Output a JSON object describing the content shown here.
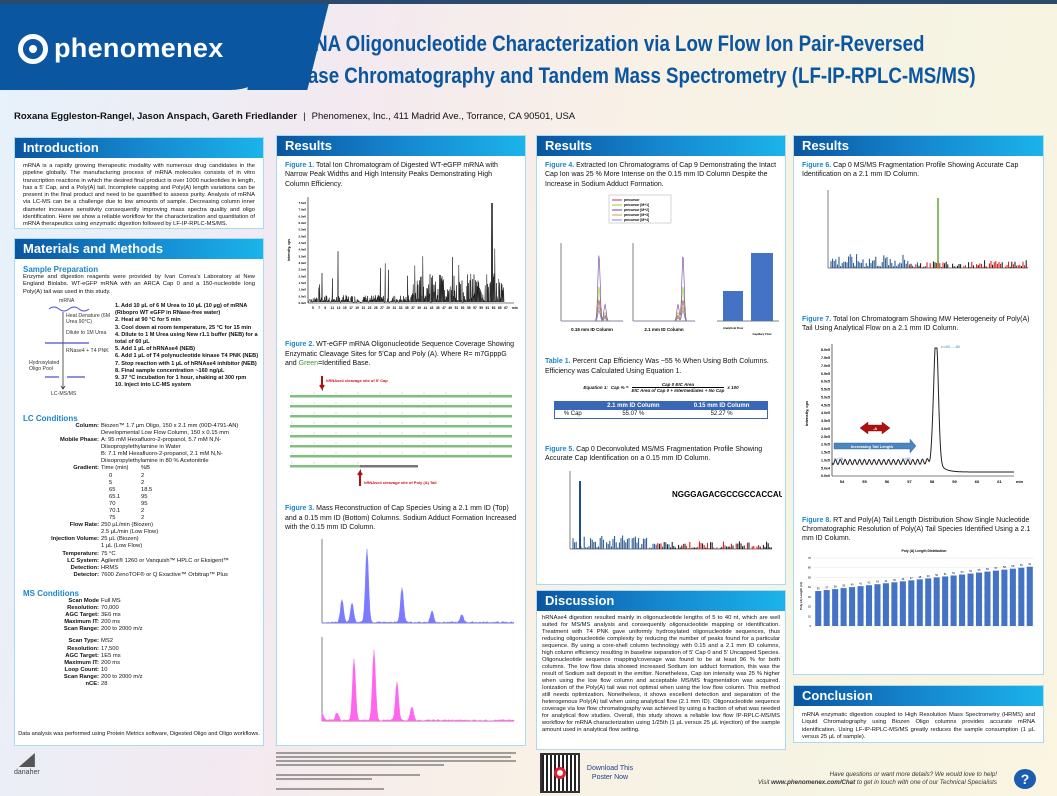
{
  "header": {
    "logo": "phenomenex",
    "title_line1": "mRNA Oligonucleotide Characterization via Low Flow Ion Pair-Reversed",
    "title_line2": "Phase Chromatography and Tandem Mass Spectrometry (LF-IP-RPLC-MS/MS)",
    "authors": "Roxana Eggleston-Rangel, Jason Anspach, Gareth Friedlander",
    "separator": "|",
    "affiliation": "Phenomenex, Inc., 411 Madrid Ave., Torrance, CA 90501, USA"
  },
  "intro": {
    "heading": "Introduction",
    "text": "mRNA is a rapidly growing therapeutic modality with numerous drug candidates in the pipeline globally. The manufacturing process of mRNA molecules consists of in vitro transcription reactions in which the desired final product is over 1000 nucleotides in length, has a 5' Cap, and a Poly(A) tail. Incomplete capping and Poly(A) length variations can be present in the final product and need to be quantified to assess purity. Analysis of mRNA via LC-MS can be a challenge due to low amounts of sample. Decreasing column inner diameter increases sensitivity consequently improving mass spectra quality and oligo identification. Here we show a reliable workflow for the characterization and quantitation of mRNA therapeutics using enzymatic digestion followed by LF-IP-RPLC-MS/MS."
  },
  "methods": {
    "heading": "Materials and Methods",
    "sample_prep_heading": "Sample Preparation",
    "sample_prep_text": "Enzyme and digestion reagents were provided by Ivan Correa's Laboratory at New England Biolabs. WT-eGFP mRNA with an ARCA Cap 0 and a 150-nucleotide long Poly(A) tail was used in this study.",
    "diagram": [
      "mRNA",
      "Heat Denature (6M Urea 90°C)",
      "Dilute to 1M Urea",
      "RNase4 + T4 PNK",
      "Hydroxylated Oligo Pool",
      "LC-MS/MS"
    ],
    "steps": [
      "1.  Add 10 µL of 6 M Urea to 10 µL (10 µg) of mRNA (Ribopro WT eGFP in RNase-free water)",
      "2.  Heat at 90 °C for 5 min",
      "3.  Cool down at room temperature, 25 °C for 15 min",
      "4.  Dilute to 1 M Urea using New r1.1 buffer (NEB) for a total of 60 µL",
      "5.  Add 1 µL of hRNAse4 (NEB)",
      "6.  Add 1 µL of T4 polynucleotide kinase T4 PNK (NEB)",
      "7.  Stop reaction with 1 µL of hRNAse4 inhibitor (NEB)",
      "8.  Final sample concentration ~160 ng/µL",
      "9.  37 °C incubation for 1 hour, shaking at 300 rpm",
      "10. Inject into LC-MS system"
    ],
    "lc_heading": "LC Conditions",
    "lc": [
      [
        "Column:",
        "Biozen™ 1.7 µm Oligo, 150 x 2.1 mm (00D-4791-AN)"
      ],
      [
        "",
        "Developmental Low Flow Column, 150 x 0.15 mm"
      ],
      [
        "Mobile Phase:",
        "A: 95 mM Hexafluoro-2-propanol, 5.7 mM N,N-Diisopropylethylamine in Water"
      ],
      [
        "",
        "B: 7.1 mM Hexafluoro-2-propanol, 2.1 mM N,N-Diisopropylethylamine in 80 % Acetonitrile"
      ]
    ],
    "gradient_label": "Gradient:",
    "gradient_head": [
      "Time (min)",
      "%B"
    ],
    "gradient": [
      [
        "0",
        "2"
      ],
      [
        "5",
        "2"
      ],
      [
        "65",
        "18.5"
      ],
      [
        "65.1",
        "95"
      ],
      [
        "70",
        "95"
      ],
      [
        "70.1",
        "2"
      ],
      [
        "75",
        "2"
      ]
    ],
    "lc2": [
      [
        "Flow Rate:",
        "250 µL/min (Biozen)"
      ],
      [
        "",
        "2.5 µL/min (Low Flow)"
      ],
      [
        "Injection Volume:",
        "25 µL (Biozen)"
      ],
      [
        "",
        "1 µL (Low Flow)"
      ],
      [
        "Temperature:",
        "75 °C"
      ],
      [
        "LC System:",
        "Agilent® 1260 or Vanquish™ HPLC or Eksigent™"
      ],
      [
        "Detection:",
        "HRMS"
      ],
      [
        "Detector:",
        "7600 ZenoTOF® or Q Exactive™ Orbitrap™ Plus"
      ]
    ],
    "ms_heading": "MS Conditions",
    "ms1": [
      [
        "Scan Mode",
        "Full MS"
      ],
      [
        "Resolution:",
        "70,000"
      ],
      [
        "AGC Target:",
        "3E6 ms"
      ],
      [
        "Maximum IT:",
        "200 ms"
      ],
      [
        "Scan Range:",
        "200 to 2000 m/z"
      ]
    ],
    "ms2": [
      [
        "Scan Type:",
        "MS2"
      ],
      [
        "Resolution:",
        "17,500"
      ],
      [
        "AGC Target:",
        "1E5 ms"
      ],
      [
        "Maximum IT:",
        "200 ms"
      ],
      [
        "Loop Count:",
        "10"
      ],
      [
        "Scan Range:",
        "200 to 2000 m/z"
      ],
      [
        "nCE:",
        "28"
      ]
    ],
    "data_note": "Data analysis was performed using Protein Metrics software, Digested Oligo and Oligo workflows."
  },
  "results1": {
    "heading": "Results",
    "fig1_label": "Figure 1.",
    "fig1_caption": "Total Ion Chromatogram of Digested WT-eGFP mRNA with Narrow Peak Widths and High Intensity Peaks Demonstrating High Column Efficiency.",
    "fig1_yticks": [
      "0.0e0",
      "5.0e5",
      "1.0e6",
      "1.5e6",
      "2.0e6",
      "2.5e6",
      "3.0e6",
      "3.5e6",
      "4.0e6",
      "4.5e6",
      "5.0e6",
      "5.5e6",
      "6.0e6",
      "6.5e6",
      "7.0e6",
      "7.5e6"
    ],
    "fig1_xticks": [
      "5",
      "7",
      "9",
      "11",
      "13",
      "15",
      "17",
      "19",
      "21",
      "23",
      "25",
      "27",
      "29",
      "31",
      "33",
      "35",
      "37",
      "39",
      "41",
      "43",
      "45",
      "47",
      "49",
      "51",
      "53",
      "55",
      "57",
      "59",
      "61",
      "63",
      "65",
      "67"
    ],
    "fig1_xunit": "min",
    "fig1_ylabel": "Intensity, cps",
    "fig2_label": "Figure 2.",
    "fig2_caption_a": "WT-eGFP mRNA Oligonucleotide Sequence Coverage Showing Enzymatic Cleavage Sites for 5'Cap and Poly (A). Where R= m7GpppG and ",
    "fig2_green": "Green",
    "fig2_caption_b": "=Identified Base.",
    "fig2_cap_site": "hRNAse4 cleavage site of 5' Cap",
    "fig2_polya_site": "hRNAse4 cleavage site of Poly (A) Tail",
    "fig3_label": "Figure 3.",
    "fig3_caption": "Mass Reconstruction of Cap Species Using a 2.1 mm ID (Top) and a 0.15 mm ID (Bottom) Columns. Sodium Adduct Formation Increased with the 0.15 mm ID Column."
  },
  "results2": {
    "heading": "Results",
    "fig4_label": "Figure 4.",
    "fig4_caption": "Extracted Ion Chromatograms of Cap 9 Demonstrating the Intact Cap Ion was 25 % More Intense on the 0.15 mm ID Column Despite the Increase in Sodium Adduct Formation.",
    "fig4_legend": [
      "precursor",
      "precursor [M+1]",
      "precursor [M+2]",
      "precursor [M+3]",
      "precursor [M+4]"
    ],
    "fig4_xlabel_a": "0.15 mm ID Column",
    "fig4_xlabel_b": "2.1 mm ID Column",
    "fig4_bar_cats": [
      "Analytical Flow",
      "Capillary Flow"
    ],
    "table1_label": "Table 1.",
    "table1_caption": "Percent Cap Efficiency Was ~55 % When Using Both Columns. Efficiency was Calculated Using Equation 1.",
    "equation_label": "Equation 1:",
    "equation_lhs": "Cap % =",
    "equation_num": "Cap 0 EIC Area",
    "equation_den": "EIC Area of Cap 0 + Intermediates + No Cap",
    "equation_mult": "x 100",
    "table1": {
      "headers": [
        "",
        "2.1 mm ID Column",
        "0.15 mm ID Column"
      ],
      "rows": [
        [
          "% Cap",
          "55.07 %",
          "52.27 %"
        ]
      ]
    },
    "fig5_label": "Figure 5.",
    "fig5_caption": "Cap 0 Deconvoluted MS/MS Fragmentation Profile Showing Accurate Cap Identification on a 0.15 mm ID Column.",
    "fig5_sequence": "NGGGAGACGCCGCCACCAU"
  },
  "discussion": {
    "heading": "Discussion",
    "text": "hRNAse4 digestion resulted mainly in oligonucleotide lengths of 5 to 40 nt, which are well suited for MS/MS analysis and consequently oligonucleotide mapping or identification. Treatment with T4 PNK gave uniformly hydroxylated oligonucleotide sequences, thus reducing oligonucleotide complexity by reducing the number of peaks found for a particular sequence. By using a core-shell column technology with 0.15 and a 2.1 mm ID columns, high column efficiency resulting in baseline separation of 5' Cap 0 and 5' Uncapped Species. Oligonucleotide sequence mapping/coverage was found to be at least 96 % for both columns. The low flow data showed increased Sodium ion adduct formation, this was the result of Sodium salt deposit in the emitter. Nonetheless, Cap ion intensity was 25 % higher when using the low flow column and acceptable MS/MS fragmentation was acquired. Ionization of the Poly(A) tail was not optimal when using the low flow column. This method still needs optimization. Nonetheless, it shows excellent detection and separation of the heterogenous Poly(A) tail when using analytical flow (2.1 mm ID). Oligonucleotide sequence coverage via low flow chromatography was achieved by using a fraction of what was needed for analytical flow studies. Overall, this study shows a reliable low flow IP-RPLC-MS/MS workflow for mRNA characterization using 1/25th (1 µL versus 25 µL injection) of the sample amount used in analytical flow setting."
  },
  "results3": {
    "heading": "Results",
    "fig6_label": "Figure 6.",
    "fig6_caption": "Cap 0 MS/MS Fragmentation Profile Showing Accurate Cap Identification on a 2.1 mm ID Column.",
    "fig7_label": "Figure 7.",
    "fig7_caption": "Total Ion Chromatogram Showing MW Heterogeneity of Poly(A) Tail Using Analytical Flow on a 2.1 mm ID Column.",
    "fig7_yticks": [
      "0.0e0",
      "5.0e4",
      "1.0e5",
      "1.5e5",
      "2.0e5",
      "2.5e5",
      "3.0e5",
      "3.5e5",
      "4.0e5",
      "4.5e5",
      "5.0e5",
      "5.5e5",
      "6.0e5",
      "6.5e5",
      "7.0e5",
      "7.5e5",
      "8.0e5"
    ],
    "fig7_xticks": [
      "54",
      "55",
      "56",
      "57",
      "58",
      "59",
      "60",
      "61"
    ],
    "fig7_xunit": "min",
    "fig7_ylabel": "Intensity, cps",
    "fig7_arrow": "-A",
    "fig7_tail": "Increasing Tail Length",
    "fig7_n_start": "n=28",
    "fig7_n_end": "n=61",
    "fig7_n_peak": "n=60.....80",
    "fig8_label": "Figure 8.",
    "fig8_caption": "RT and Poly(A) Tail Length Distribution Show Single Nucleotide Chromatographic Resolution of Poly(A) Tail Species Identified Using a 2.1 mm ID Column."
  },
  "chart_data": {
    "type": "bar",
    "title": "Poly (A) Length Distribution",
    "ylabel": "Poly (A) Length (nt)",
    "xlabel": "",
    "ylim": [
      0,
      70
    ],
    "yticks": [
      0,
      10,
      20,
      30,
      40,
      50,
      60,
      70
    ],
    "values": [
      36,
      37,
      38,
      39,
      40,
      41,
      42,
      43,
      44,
      45,
      46,
      47,
      48,
      49,
      50,
      51,
      52,
      53,
      54,
      55,
      56,
      57,
      58,
      59,
      60,
      61
    ],
    "color": "#4472c4"
  },
  "conclusion": {
    "heading": "Conclusion",
    "text": "mRNA enzymatic digestion coupled to High Resolution Mass Spectrometry (HRMS) and Liquid Chromatography using Biozen Oligo columns provides accurate mRNA identification. Using LF-IP-RPLC-MS/MS greatly reduces the sample consumption (1 µL versus 25 µL of sample)."
  },
  "footer": {
    "download": "Download This Poster Now",
    "help_line1": "Have questions or want more details? We would love to help!",
    "help_line2_a": "Visit ",
    "help_url": "www.phenomenex.com/Chat",
    "help_line2_b": " to get in touch with one of our Technical Specialists",
    "help_icon": "?",
    "danaher": "danaher"
  },
  "colors": {
    "brand": "#0a56a0",
    "accent": "#1c86c8",
    "pink": "#ff66ee",
    "purple": "#7b7bff"
  }
}
